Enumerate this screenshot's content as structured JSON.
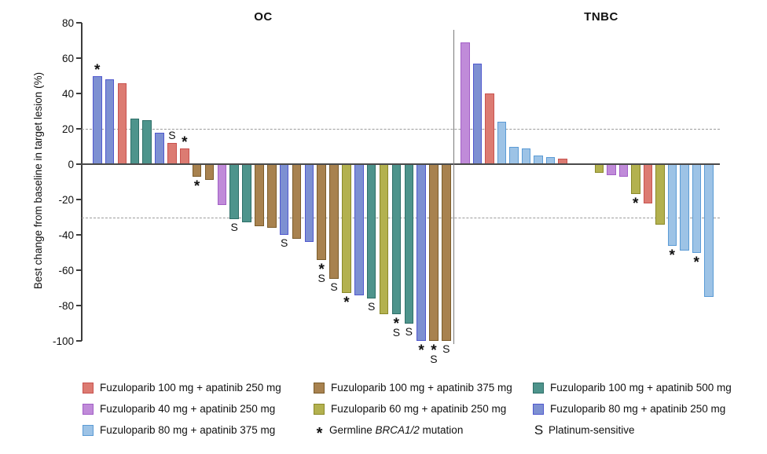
{
  "figure_title": "Waterfall plot of best change from baseline in target lesion",
  "colors": {
    "f100_a250": {
      "fill": "#DC7B72",
      "border": "#C8524F"
    },
    "f100_a375": {
      "fill": "#A8824F",
      "border": "#7B5C2B"
    },
    "f100_a500": {
      "fill": "#4E948C",
      "border": "#2E6F68"
    },
    "f40_a250": {
      "fill": "#C08BD9",
      "border": "#A25FC6"
    },
    "f60_a250": {
      "fill": "#B3B14F",
      "border": "#8A8929"
    },
    "f80_a250": {
      "fill": "#7D90D2",
      "border": "#5058CE"
    },
    "f80_a375": {
      "fill": "#9DC3E6",
      "border": "#5B9BD5"
    }
  },
  "chart_data": {
    "type": "bar",
    "subtype": "waterfall",
    "ylabel": "Best change from baseline in target lesion (%)",
    "ylim": [
      -100,
      80
    ],
    "yticks": [
      80,
      60,
      40,
      20,
      0,
      -20,
      -40,
      -60,
      -80,
      -100
    ],
    "reference_lines": [
      20,
      -30
    ],
    "grid": false,
    "marker_meanings": {
      "*": "Germline BRCA1/2 mutation",
      "S": "Platinum-sensitive"
    },
    "panels": [
      {
        "name": "OC",
        "bars": [
          {
            "value": 50,
            "group": "f80_a250",
            "markers": [
              "*"
            ]
          },
          {
            "value": 48,
            "group": "f80_a250",
            "markers": []
          },
          {
            "value": 46,
            "group": "f100_a250",
            "markers": []
          },
          {
            "value": 26,
            "group": "f100_a500",
            "markers": []
          },
          {
            "value": 25,
            "group": "f100_a500",
            "markers": []
          },
          {
            "value": 18,
            "group": "f80_a250",
            "markers": []
          },
          {
            "value": 12,
            "group": "f100_a250",
            "markers": [
              "S"
            ]
          },
          {
            "value": 9,
            "group": "f100_a250",
            "markers": [
              "*"
            ]
          },
          {
            "value": -7,
            "group": "f100_a375",
            "markers": [
              "*"
            ]
          },
          {
            "value": -9,
            "group": "f100_a375",
            "markers": []
          },
          {
            "value": -23,
            "group": "f40_a250",
            "markers": []
          },
          {
            "value": -31,
            "group": "f100_a500",
            "markers": [
              "S"
            ]
          },
          {
            "value": -33,
            "group": "f100_a500",
            "markers": []
          },
          {
            "value": -35,
            "group": "f100_a375",
            "markers": []
          },
          {
            "value": -36,
            "group": "f100_a375",
            "markers": []
          },
          {
            "value": -40,
            "group": "f80_a250",
            "markers": [
              "S"
            ]
          },
          {
            "value": -42,
            "group": "f100_a375",
            "markers": []
          },
          {
            "value": -44,
            "group": "f80_a250",
            "markers": []
          },
          {
            "value": -54,
            "group": "f100_a375",
            "markers": [
              "*",
              "S"
            ]
          },
          {
            "value": -65,
            "group": "f100_a375",
            "markers": [
              "S"
            ]
          },
          {
            "value": -73,
            "group": "f60_a250",
            "markers": [
              "*"
            ]
          },
          {
            "value": -74,
            "group": "f80_a250",
            "markers": []
          },
          {
            "value": -76,
            "group": "f100_a500",
            "markers": [
              "S"
            ]
          },
          {
            "value": -85,
            "group": "f60_a250",
            "markers": []
          },
          {
            "value": -85,
            "group": "f100_a500",
            "markers": [
              "*",
              "S"
            ]
          },
          {
            "value": -90,
            "group": "f100_a500",
            "markers": [
              "S"
            ]
          },
          {
            "value": -100,
            "group": "f80_a250",
            "markers": [
              "*"
            ]
          },
          {
            "value": -100,
            "group": "f100_a375",
            "markers": [
              "*",
              "S"
            ]
          },
          {
            "value": -100,
            "group": "f100_a375",
            "markers": [
              "S"
            ]
          }
        ]
      },
      {
        "name": "TNBC",
        "bars": [
          {
            "value": 69,
            "group": "f40_a250",
            "markers": []
          },
          {
            "value": 57,
            "group": "f80_a250",
            "markers": []
          },
          {
            "value": 40,
            "group": "f100_a250",
            "markers": []
          },
          {
            "value": 24,
            "group": "f80_a375",
            "markers": []
          },
          {
            "value": 10,
            "group": "f80_a375",
            "markers": []
          },
          {
            "value": 9,
            "group": "f80_a375",
            "markers": []
          },
          {
            "value": 5,
            "group": "f80_a375",
            "markers": []
          },
          {
            "value": 4,
            "group": "f80_a375",
            "markers": []
          },
          {
            "value": 3,
            "group": "f100_a250",
            "markers": []
          },
          {
            "value": 0,
            "group": null,
            "markers": []
          },
          {
            "value": 0,
            "group": null,
            "markers": []
          },
          {
            "value": -5,
            "group": "f60_a250",
            "markers": []
          },
          {
            "value": -6,
            "group": "f40_a250",
            "markers": []
          },
          {
            "value": -7,
            "group": "f40_a250",
            "markers": []
          },
          {
            "value": -17,
            "group": "f60_a250",
            "markers": [
              "*"
            ]
          },
          {
            "value": -22,
            "group": "f100_a250",
            "markers": []
          },
          {
            "value": -34,
            "group": "f60_a250",
            "markers": []
          },
          {
            "value": -46,
            "group": "f80_a375",
            "markers": [
              "*"
            ]
          },
          {
            "value": -49,
            "group": "f80_a375",
            "markers": []
          },
          {
            "value": -50,
            "group": "f80_a375",
            "markers": [
              "*"
            ]
          },
          {
            "value": -75,
            "group": "f80_a375",
            "markers": []
          }
        ]
      }
    ]
  },
  "legend": {
    "columns": [
      {
        "items": [
          {
            "swatch": "f100_a250",
            "label": "Fuzuloparib 100 mg + apatinib 250 mg"
          },
          {
            "swatch": "f40_a250",
            "label": "Fuzuloparib 40 mg + apatinib 250 mg"
          },
          {
            "swatch": "f80_a375",
            "label": "Fuzuloparib 80 mg + apatinib 375 mg"
          }
        ]
      },
      {
        "items": [
          {
            "swatch": "f100_a375",
            "label": "Fuzuloparib 100 mg + apatinib 375 mg"
          },
          {
            "swatch": "f60_a250",
            "label": "Fuzuloparib 60 mg + apatinib 250 mg"
          },
          {
            "symbol": "*",
            "label_prefix": "Germline ",
            "label_italic": "BRCA1/2",
            "label_suffix": " mutation"
          }
        ]
      },
      {
        "items": [
          {
            "swatch": "f100_a500",
            "label": "Fuzuloparib 100 mg + apatinib 500 mg"
          },
          {
            "swatch": "f80_a250",
            "label": "Fuzuloparib 80 mg + apatinib 250 mg"
          },
          {
            "symbol": "S",
            "label": "Platinum-sensitive"
          }
        ]
      }
    ]
  }
}
